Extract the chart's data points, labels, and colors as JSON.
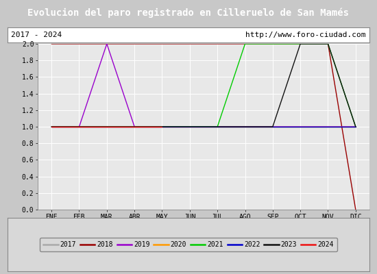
{
  "title": "Evolucion del paro registrado en Cilleruelo de San Mamés",
  "subtitle_left": "2017 - 2024",
  "subtitle_right": "http://www.foro-ciudad.com",
  "title_bg": "#4d8fcc",
  "title_color": "#ffffff",
  "plot_bg": "#e8e8e8",
  "legend_bg": "#d8d8d8",
  "months": [
    "ENE",
    "FEB",
    "MAR",
    "ABR",
    "MAY",
    "JUN",
    "JUL",
    "AGO",
    "SEP",
    "OCT",
    "NOV",
    "DIC"
  ],
  "ylim": [
    0.0,
    2.0
  ],
  "yticks": [
    0.0,
    0.2,
    0.4,
    0.6,
    0.8,
    1.0,
    1.2,
    1.4,
    1.6,
    1.8,
    2.0
  ],
  "series": [
    {
      "year": 2017,
      "color": "#aaaaaa",
      "values": [
        1,
        1,
        1,
        1,
        1,
        1,
        1,
        1,
        1,
        1,
        1,
        1
      ]
    },
    {
      "year": 2018,
      "color": "#990000",
      "values": [
        2,
        2,
        2,
        2,
        2,
        2,
        2,
        2,
        2,
        2,
        2,
        0
      ]
    },
    {
      "year": 2019,
      "color": "#9900cc",
      "values": [
        1,
        1,
        2,
        1,
        1,
        1,
        1,
        1,
        1,
        1,
        1,
        1
      ]
    },
    {
      "year": 2020,
      "color": "#ff9900",
      "values": [
        1,
        1,
        1,
        1,
        1,
        1,
        1,
        1,
        1,
        1,
        1,
        1
      ]
    },
    {
      "year": 2021,
      "color": "#00cc00",
      "values": [
        1,
        1,
        1,
        1,
        1,
        1,
        1,
        2,
        2,
        2,
        2,
        1
      ]
    },
    {
      "year": 2022,
      "color": "#0000cc",
      "values": [
        1,
        1,
        1,
        1,
        1,
        1,
        1,
        1,
        1,
        1,
        1,
        1
      ]
    },
    {
      "year": 2023,
      "color": "#111111",
      "values": [
        1,
        1,
        1,
        1,
        1,
        1,
        1,
        1,
        1,
        2,
        2,
        1
      ]
    },
    {
      "year": 2024,
      "color": "#ee1111",
      "values": [
        1,
        1,
        1,
        1,
        1,
        null,
        null,
        null,
        null,
        null,
        null,
        null
      ]
    }
  ]
}
